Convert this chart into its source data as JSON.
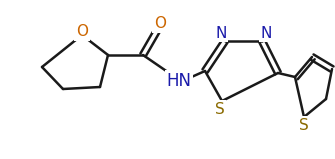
{
  "background_color": "#ffffff",
  "line_color": "#1a1a1a",
  "line_width": 1.8,
  "figsize": [
    3.35,
    1.59
  ],
  "dpi": 100,
  "xlim": [
    0,
    335
  ],
  "ylim": [
    0,
    159
  ],
  "O_color": "#cc6600",
  "N_color": "#1a1aaa",
  "S_color": "#8a6a00",
  "C_color": "#1a1a1a",
  "fontsize": 11
}
